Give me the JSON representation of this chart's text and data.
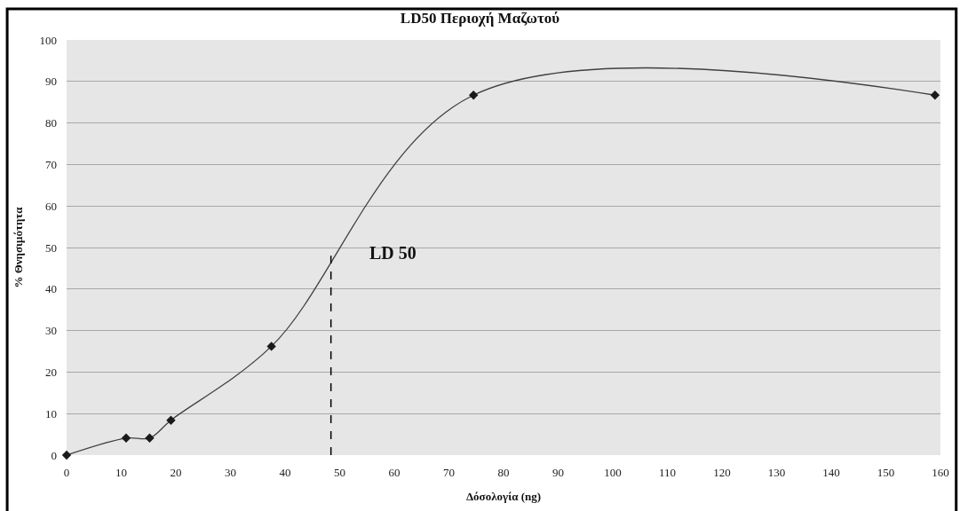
{
  "chart_data": {
    "type": "line",
    "title": "LD50 Περιοχή Μαζωτού",
    "xlabel": "Δόσολογία (ng)",
    "ylabel": "% Θνησιμότητα",
    "x": [
      0,
      10.9,
      15.2,
      19.1,
      37.5,
      74.5,
      159
    ],
    "series": [
      {
        "color": "#404040",
        "values": [
          0,
          4.1,
          4.1,
          8.4,
          26.2,
          86.7,
          86.7
        ],
        "marker": "diamond",
        "line_style": "solid"
      },
      {
        "type": "line",
        "color": "#000000",
        "x": [
          48.4,
          48.4
        ],
        "values": [
          0,
          48
        ],
        "marker": "none",
        "line_style": "dashed"
      }
    ],
    "annotations": [
      "LD 50"
    ],
    "xlim": [
      0,
      160
    ],
    "xticks": [
      0,
      10,
      20,
      30,
      40,
      50,
      60,
      70,
      80,
      90,
      100,
      110,
      120,
      130,
      140,
      150,
      160
    ],
    "ylim": [
      0,
      100
    ],
    "yticks": [
      0,
      10,
      20,
      30,
      40,
      50,
      60,
      70,
      80,
      90,
      100
    ],
    "grid": "y"
  }
}
